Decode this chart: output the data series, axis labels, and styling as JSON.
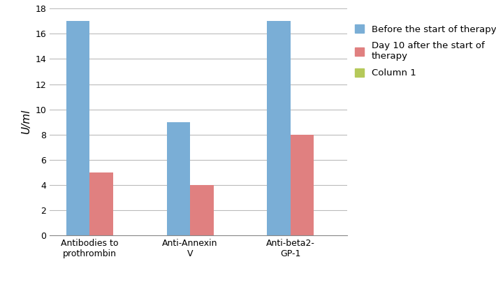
{
  "categories": [
    "Antibodies to\nprothrombin",
    "Anti-Annexin\nV",
    "Anti-beta2-\nGP-1"
  ],
  "series": [
    {
      "name": "Before the start of therapy",
      "values": [
        17,
        9,
        17
      ],
      "color": "#7aaed6"
    },
    {
      "name": "Day 10 after the start of\ntherapy",
      "values": [
        5,
        4,
        8
      ],
      "color": "#e08080"
    },
    {
      "name": "Column 1",
      "values": [
        0,
        0,
        0
      ],
      "color": "#b5c95a"
    }
  ],
  "ylabel": "U/ml",
  "ylim": [
    0,
    18
  ],
  "yticks": [
    0,
    2,
    4,
    6,
    8,
    10,
    12,
    14,
    16,
    18
  ],
  "bar_width": 0.35,
  "legend_fontsize": 9.5,
  "ylabel_fontsize": 11,
  "tick_fontsize": 9,
  "background_color": "#ffffff",
  "grid_color": "#bbbbbb"
}
